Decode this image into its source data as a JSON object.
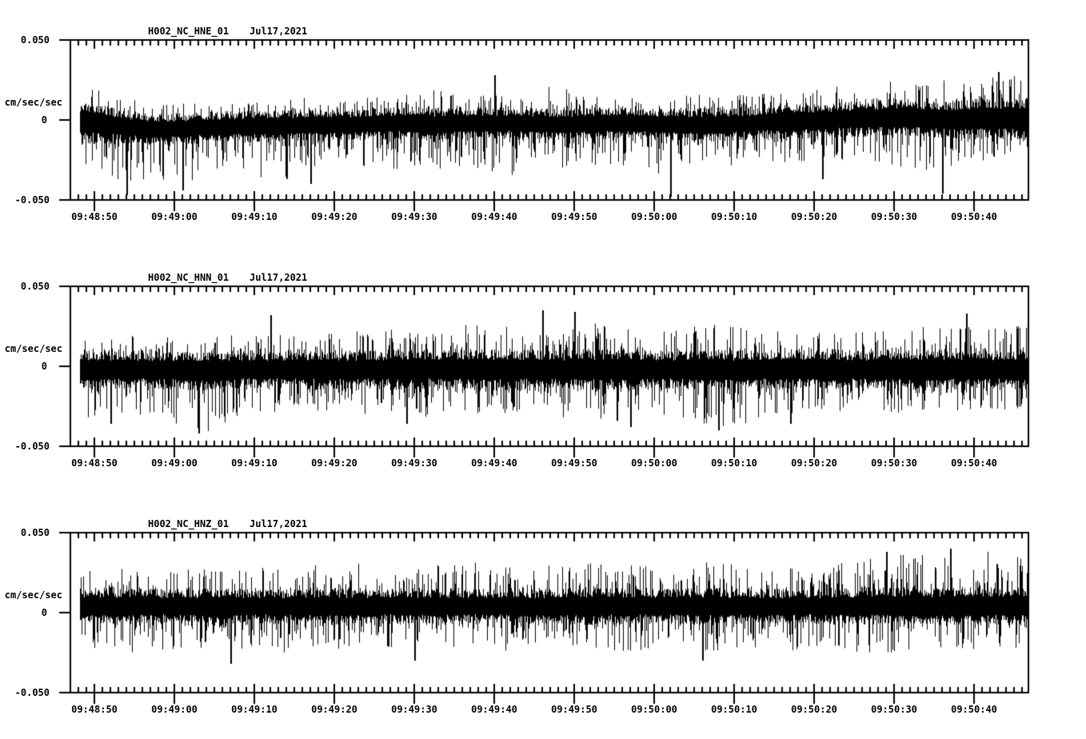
{
  "colors": {
    "background": "#ffffff",
    "trace": "#000000",
    "axis": "#000000",
    "text": "#000000"
  },
  "chart_data": [
    {
      "type": "line",
      "title": "H002_NC_HNE_01",
      "date_label": "Jul17,2021",
      "ylabel": "cm/sec/sec",
      "y_tick_labels": [
        "0.050",
        "0",
        "-0.050"
      ],
      "y_tick_values": [
        0.05,
        0,
        -0.05
      ],
      "ylim": [
        -0.05,
        0.05
      ],
      "x_tick_labels": [
        "09:48:50",
        "09:49:00",
        "09:49:10",
        "09:49:20",
        "09:49:30",
        "09:49:40",
        "09:49:50",
        "09:50:00",
        "09:50:10",
        "09:50:20",
        "09:50:30",
        "09:50:40"
      ],
      "x_first_tick": "09:48:50",
      "x_major_step_sec": 10,
      "x_minor_step_sec": 1,
      "x_visible_range": [
        "09:48:48",
        "09:50:47"
      ],
      "grid": "off",
      "legend": "none",
      "seed": 7,
      "noise_envelope": {
        "samples_across": 25,
        "center": [
          -0.001,
          -0.004,
          -0.006,
          -0.005,
          -0.004,
          -0.004,
          -0.003,
          -0.003,
          -0.002,
          -0.003,
          -0.002,
          -0.002,
          -0.003,
          -0.002,
          -0.002,
          -0.003,
          -0.003,
          -0.002,
          -0.001,
          0.0,
          0.001,
          0.001,
          0.0,
          0.001,
          0.001
        ],
        "body_half": [
          0.014,
          0.011,
          0.01,
          0.01,
          0.01,
          0.01,
          0.01,
          0.01,
          0.01,
          0.011,
          0.01,
          0.01,
          0.01,
          0.01,
          0.01,
          0.01,
          0.011,
          0.01,
          0.011,
          0.011,
          0.012,
          0.012,
          0.012,
          0.013,
          0.013
        ],
        "peak_up": [
          0.024,
          0.018,
          0.016,
          0.017,
          0.016,
          0.018,
          0.017,
          0.016,
          0.018,
          0.022,
          0.018,
          0.017,
          0.026,
          0.018,
          0.017,
          0.018,
          0.019,
          0.018,
          0.019,
          0.021,
          0.024,
          0.022,
          0.025,
          0.026,
          0.028
        ],
        "peak_down": [
          0.027,
          0.034,
          0.042,
          0.031,
          0.028,
          0.035,
          0.028,
          0.026,
          0.031,
          0.03,
          0.028,
          0.035,
          0.028,
          0.03,
          0.034,
          0.03,
          0.026,
          0.028,
          0.026,
          0.024,
          0.029,
          0.035,
          0.031,
          0.027,
          0.024
        ]
      },
      "notable_extremes": [
        {
          "t": "09:48:54",
          "v": -0.047
        },
        {
          "t": "09:49:01",
          "v": -0.044
        },
        {
          "t": "09:49:17",
          "v": -0.04
        },
        {
          "t": "09:49:40",
          "v": 0.028
        },
        {
          "t": "09:50:02",
          "v": -0.048
        },
        {
          "t": "09:50:21",
          "v": -0.037
        },
        {
          "t": "09:50:36",
          "v": -0.046
        },
        {
          "t": "09:50:43",
          "v": 0.03
        }
      ]
    },
    {
      "type": "line",
      "title": "H002_NC_HNN_01",
      "date_label": "Jul17,2021",
      "ylabel": "cm/sec/sec",
      "y_tick_labels": [
        "0.050",
        "0",
        "-0.050"
      ],
      "y_tick_values": [
        0.05,
        0,
        -0.05
      ],
      "ylim": [
        -0.05,
        0.05
      ],
      "x_tick_labels": [
        "09:48:50",
        "09:49:00",
        "09:49:10",
        "09:49:20",
        "09:49:30",
        "09:49:40",
        "09:49:50",
        "09:50:00",
        "09:50:10",
        "09:50:20",
        "09:50:30",
        "09:50:40"
      ],
      "x_first_tick": "09:48:50",
      "x_major_step_sec": 10,
      "x_minor_step_sec": 1,
      "x_visible_range": [
        "09:48:48",
        "09:50:47"
      ],
      "grid": "off",
      "legend": "none",
      "seed": 23,
      "noise_envelope": {
        "samples_across": 25,
        "center": [
          -0.002,
          -0.002,
          -0.002,
          -0.003,
          -0.002,
          -0.002,
          -0.002,
          -0.002,
          -0.002,
          -0.002,
          -0.002,
          -0.002,
          -0.002,
          -0.002,
          -0.002,
          -0.002,
          -0.002,
          -0.002,
          -0.002,
          -0.002,
          -0.002,
          -0.002,
          -0.002,
          -0.002,
          -0.002
        ],
        "body_half": [
          0.013,
          0.012,
          0.012,
          0.013,
          0.012,
          0.012,
          0.013,
          0.012,
          0.013,
          0.012,
          0.013,
          0.013,
          0.012,
          0.013,
          0.013,
          0.012,
          0.013,
          0.012,
          0.013,
          0.013,
          0.012,
          0.013,
          0.013,
          0.012,
          0.013
        ],
        "peak_up": [
          0.02,
          0.022,
          0.021,
          0.02,
          0.024,
          0.022,
          0.022,
          0.024,
          0.028,
          0.024,
          0.033,
          0.026,
          0.024,
          0.03,
          0.026,
          0.024,
          0.03,
          0.026,
          0.024,
          0.026,
          0.024,
          0.026,
          0.028,
          0.026,
          0.03
        ],
        "peak_down": [
          0.033,
          0.03,
          0.028,
          0.042,
          0.03,
          0.028,
          0.026,
          0.03,
          0.028,
          0.03,
          0.03,
          0.028,
          0.032,
          0.03,
          0.034,
          0.03,
          0.036,
          0.034,
          0.03,
          0.028,
          0.026,
          0.03,
          0.028,
          0.026,
          0.024
        ]
      },
      "notable_extremes": [
        {
          "t": "09:48:52",
          "v": -0.036
        },
        {
          "t": "09:49:03",
          "v": -0.042
        },
        {
          "t": "09:49:12",
          "v": 0.032
        },
        {
          "t": "09:49:29",
          "v": -0.036
        },
        {
          "t": "09:49:46",
          "v": 0.035
        },
        {
          "t": "09:49:50",
          "v": 0.034
        },
        {
          "t": "09:49:57",
          "v": -0.038
        },
        {
          "t": "09:50:08",
          "v": -0.04
        },
        {
          "t": "09:50:17",
          "v": -0.036
        },
        {
          "t": "09:50:39",
          "v": 0.033
        }
      ]
    },
    {
      "type": "line",
      "title": "H002_NC_HNZ_01",
      "date_label": "Jul17,2021",
      "ylabel": "cm/sec/sec",
      "y_tick_labels": [
        "0.050",
        "0",
        "-0.050"
      ],
      "y_tick_values": [
        0.05,
        0,
        -0.05
      ],
      "ylim": [
        -0.05,
        0.05
      ],
      "x_tick_labels": [
        "09:48:50",
        "09:49:00",
        "09:49:10",
        "09:49:20",
        "09:49:30",
        "09:49:40",
        "09:49:50",
        "09:50:00",
        "09:50:10",
        "09:50:20",
        "09:50:30",
        "09:50:40"
      ],
      "x_first_tick": "09:48:50",
      "x_major_step_sec": 10,
      "x_minor_step_sec": 1,
      "x_visible_range": [
        "09:48:48",
        "09:50:47"
      ],
      "grid": "off",
      "legend": "none",
      "seed": 41,
      "noise_envelope": {
        "samples_across": 25,
        "center": [
          0.004,
          0.004,
          0.004,
          0.004,
          0.004,
          0.004,
          0.004,
          0.004,
          0.004,
          0.004,
          0.004,
          0.004,
          0.004,
          0.004,
          0.004,
          0.004,
          0.004,
          0.004,
          0.004,
          0.004,
          0.004,
          0.004,
          0.004,
          0.004,
          0.004
        ],
        "body_half": [
          0.012,
          0.011,
          0.011,
          0.011,
          0.011,
          0.011,
          0.012,
          0.011,
          0.011,
          0.012,
          0.011,
          0.011,
          0.011,
          0.012,
          0.011,
          0.011,
          0.012,
          0.011,
          0.011,
          0.011,
          0.012,
          0.012,
          0.012,
          0.012,
          0.012
        ],
        "peak_up": [
          0.022,
          0.026,
          0.022,
          0.024,
          0.026,
          0.024,
          0.026,
          0.028,
          0.024,
          0.026,
          0.028,
          0.024,
          0.026,
          0.028,
          0.026,
          0.024,
          0.028,
          0.026,
          0.024,
          0.026,
          0.03,
          0.034,
          0.03,
          0.036,
          0.03
        ],
        "peak_down": [
          0.026,
          0.03,
          0.028,
          0.026,
          0.028,
          0.03,
          0.026,
          0.032,
          0.028,
          0.026,
          0.03,
          0.028,
          0.026,
          0.03,
          0.028,
          0.026,
          0.028,
          0.026,
          0.028,
          0.026,
          0.03,
          0.028,
          0.026,
          0.028,
          0.026
        ]
      },
      "notable_extremes": [
        {
          "t": "09:49:07",
          "v": -0.032
        },
        {
          "t": "09:49:30",
          "v": -0.03
        },
        {
          "t": "09:50:06",
          "v": -0.03
        },
        {
          "t": "09:50:29",
          "v": 0.038
        },
        {
          "t": "09:50:37",
          "v": 0.04
        }
      ]
    }
  ]
}
